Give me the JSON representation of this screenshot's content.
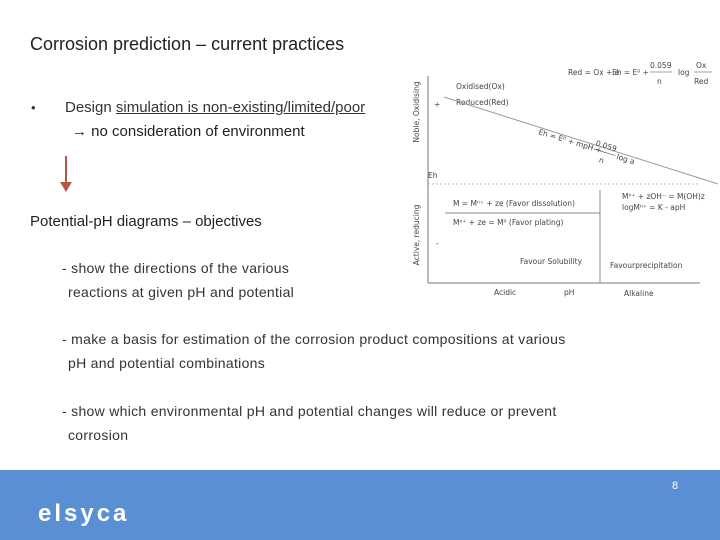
{
  "header": {
    "title": "Corrosion prediction – current practices"
  },
  "bullet": {
    "marker": "•",
    "plain": "Design",
    "underlined": "simulation is non-existing/limited/poor",
    "consequence": "→ no consideration of environment"
  },
  "section": {
    "heading": "Potential-pH diagrams – objectives",
    "items": [
      [
        "- show the directions of the various",
        "reactions at given pH and potential"
      ],
      [
        "- make a basis for estimation of the corrosion product compositions at various",
        "pH and potential combinations"
      ],
      [
        "- show which environmental pH and potential changes will reduce or prevent",
        "corrosion"
      ]
    ]
  },
  "diagram": {
    "reaction": "Red = Ox + e",
    "nernst_left": "Eh = E⁰ +",
    "nernst_num": "0.059",
    "nernst_den": "n",
    "nernst_log": "log",
    "nernst_ox": "Ox",
    "nernst_red": "Red",
    "axis_noble": "Noble, Oxidising",
    "axis_active": "Active, reducing",
    "plus": "+",
    "minus": "-",
    "eh": "Eh",
    "oxidised": "Oxidised(Ox)",
    "reduced": "Reduced(Red)",
    "slope_left": "Eh = E⁰ + mpH +",
    "slope_num": "0.059",
    "slope_den": "n",
    "slope_log": "log a",
    "dissolution": "M = Mⁿ⁺ + ze (Favor dissolution)",
    "plating": "Mⁿ⁺ + ze = M⁰ (Favor plating)",
    "hydroxide": "Mⁿ⁺ + zOH⁻ = M(OH)z",
    "solubility_eq": "logMⁿ⁺ = K - apH",
    "favour_solubility": "Favour Solubility",
    "favour_precipitation": "Favourprecipitation",
    "acidic": "Acidic",
    "ph": "pH",
    "alkaline": "Alkaline"
  },
  "footer": {
    "logo": "elsyca",
    "page": "8"
  }
}
